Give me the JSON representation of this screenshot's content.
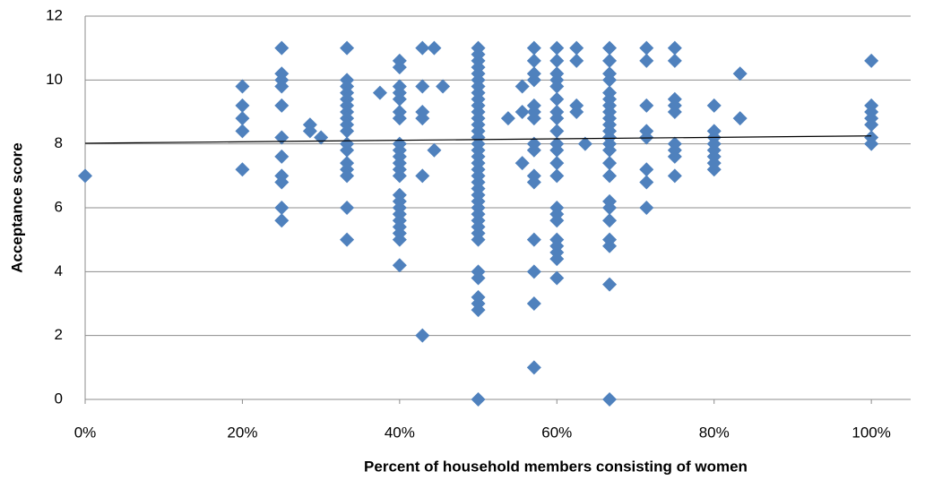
{
  "chart_data": {
    "type": "scatter",
    "x_label": "Percent of household members consisting of women",
    "y_label": "Acceptance score",
    "xlim": [
      0,
      105
    ],
    "xticks": [
      {
        "value": 0,
        "label": "0%"
      },
      {
        "value": 20,
        "label": "20%"
      },
      {
        "value": 40,
        "label": "40%"
      },
      {
        "value": 60,
        "label": "60%"
      },
      {
        "value": 80,
        "label": "80%"
      },
      {
        "value": 100,
        "label": "100%"
      }
    ],
    "ylim": [
      0,
      12
    ],
    "yticks": [
      0,
      2,
      4,
      6,
      8,
      10,
      12
    ],
    "grid": true,
    "trendline": {
      "x": [
        0,
        100
      ],
      "y": [
        8.02,
        8.25
      ],
      "color": "#000000"
    },
    "series": [
      {
        "color": "#4f81bd",
        "x": [
          0,
          20,
          20,
          20,
          20,
          20,
          25,
          25,
          25,
          25,
          25,
          25,
          25,
          25,
          25,
          25,
          25,
          28.6,
          28.6,
          30,
          33.3,
          33.3,
          33.3,
          33.3,
          33.3,
          33.3,
          33.3,
          33.3,
          33.3,
          33.3,
          33.3,
          33.3,
          33.3,
          33.3,
          33.3,
          33.3,
          33.3,
          37.5,
          40,
          40,
          40,
          40,
          40,
          40,
          40,
          40,
          40,
          40,
          40,
          40,
          40,
          40,
          40,
          40,
          40,
          40,
          40,
          40,
          40,
          40,
          42.9,
          42.9,
          42.9,
          42.9,
          42.9,
          42.9,
          44.4,
          44.4,
          45.5,
          50,
          50,
          50,
          50,
          50,
          50,
          50,
          50,
          50,
          50,
          50,
          50,
          50,
          50,
          50,
          50,
          50,
          50,
          50,
          50,
          50,
          50,
          50,
          50,
          50,
          50,
          50,
          50,
          50,
          50,
          50,
          50,
          50,
          50,
          50,
          50,
          50,
          53.8,
          55.6,
          55.6,
          55.6,
          57.1,
          57.1,
          57.1,
          57.1,
          57.1,
          57.1,
          57.1,
          57.1,
          57.1,
          57.1,
          57.1,
          57.1,
          57.1,
          57.1,
          57.1,
          60,
          60,
          60,
          60,
          60,
          60,
          60,
          60,
          60,
          60,
          60,
          60,
          60,
          60,
          60,
          60,
          60,
          60,
          60,
          60,
          60,
          62.5,
          62.5,
          62.5,
          62.5,
          63.6,
          66.7,
          66.7,
          66.7,
          66.7,
          66.7,
          66.7,
          66.7,
          66.7,
          66.7,
          66.7,
          66.7,
          66.7,
          66.7,
          66.7,
          66.7,
          66.7,
          66.7,
          66.7,
          66.7,
          66.7,
          66.7,
          66.7,
          66.7,
          71.4,
          71.4,
          71.4,
          71.4,
          71.4,
          71.4,
          71.4,
          71.4,
          75,
          75,
          75,
          75,
          75,
          75,
          75,
          75,
          75,
          80,
          80,
          80,
          80,
          80,
          80,
          80,
          80,
          83.3,
          83.3,
          100,
          100,
          100,
          100,
          100,
          100,
          100
        ],
        "values": [
          7,
          9.8,
          9.2,
          8.8,
          8.4,
          7.2,
          11,
          10.2,
          10,
          9.8,
          9.2,
          8.2,
          7.6,
          7,
          6.8,
          6,
          5.6,
          8.6,
          8.4,
          8.2,
          11,
          10,
          9.8,
          9.6,
          9.4,
          9.2,
          9,
          8.8,
          8.6,
          8.4,
          8,
          7.8,
          7.4,
          7.2,
          7,
          6,
          5,
          9.6,
          10.6,
          10.4,
          9.8,
          9.6,
          9.4,
          9,
          8.8,
          8,
          7.8,
          7.6,
          7.4,
          7.2,
          7,
          6.4,
          6.2,
          6,
          5.8,
          5.6,
          5.4,
          5.2,
          5,
          4.2,
          11,
          9.8,
          9,
          8.8,
          7,
          2,
          11,
          7.8,
          9.8,
          11,
          10.8,
          10.6,
          10.4,
          10.2,
          10,
          9.8,
          9.6,
          9.4,
          9.2,
          9,
          8.8,
          8.6,
          8.4,
          8.2,
          8,
          7.8,
          7.6,
          7.4,
          7.2,
          7,
          6.8,
          6.6,
          6.4,
          6.2,
          6,
          5.8,
          5.6,
          5.4,
          5.2,
          5,
          4,
          3.8,
          3.2,
          3,
          2.8,
          0,
          8.8,
          9.8,
          9,
          7.4,
          11,
          10.6,
          10.2,
          10,
          9.2,
          9,
          8.8,
          8,
          7.8,
          7,
          6.8,
          5,
          4,
          3,
          1,
          11,
          10.6,
          10.2,
          10,
          9.8,
          9.4,
          9,
          8.8,
          8.4,
          8,
          7.8,
          7.4,
          7,
          6,
          5.8,
          5.6,
          5,
          4.8,
          4.6,
          4.4,
          3.8,
          11,
          10.6,
          9.2,
          9,
          8,
          11,
          10.6,
          10.2,
          10,
          9.6,
          9.4,
          9.2,
          9,
          8.8,
          8.6,
          8.4,
          8.2,
          8,
          7.8,
          7.4,
          7,
          6.2,
          6,
          5.6,
          5,
          4.8,
          3.6,
          0,
          11,
          10.6,
          9.2,
          8.4,
          8.2,
          7.2,
          6.8,
          6,
          11,
          10.6,
          9.4,
          9.2,
          9,
          8,
          7.8,
          7.6,
          7,
          9.2,
          8.4,
          8.2,
          8,
          7.8,
          7.6,
          7.4,
          7.2,
          10.2,
          8.8,
          10.6,
          9.2,
          9,
          8.8,
          8.6,
          8.2,
          8
        ]
      }
    ]
  }
}
